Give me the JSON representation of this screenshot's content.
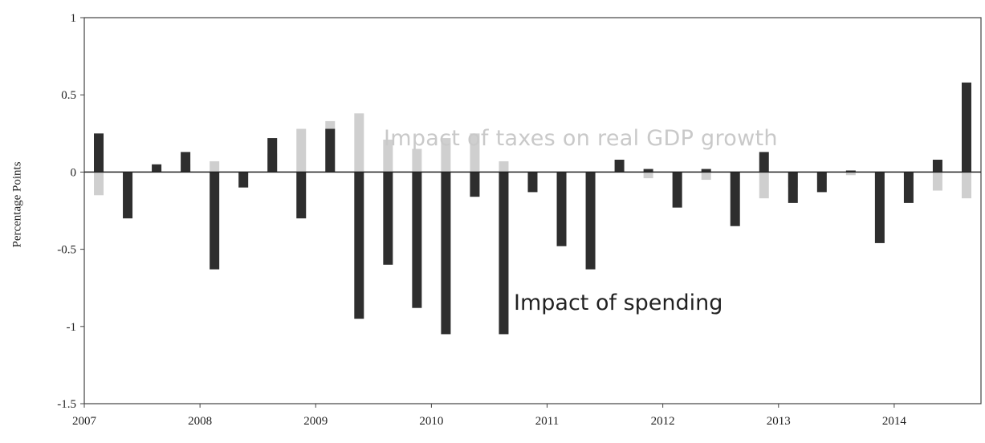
{
  "chart_data": {
    "type": "bar",
    "title": "",
    "ylabel": "Percentage Points",
    "xlabel": "",
    "ylim": [
      -1.5,
      1
    ],
    "yticks": [
      "1",
      "0.5",
      "0",
      "-0.5",
      "-1",
      "-1.5"
    ],
    "x_tick_labels": [
      "2007",
      "2008",
      "2009",
      "2010",
      "2011",
      "2012",
      "2013",
      "2014"
    ],
    "annotations": {
      "taxes": "Impact of taxes on real GDP growth",
      "spending": "Impact of spending"
    },
    "colors": {
      "taxes": "#cfcfcf",
      "spending": "#2e2e2e"
    },
    "grid": false,
    "series": [
      {
        "key": "taxes",
        "values": [
          -0.15,
          -0.12,
          0.02,
          0.05,
          0.07,
          -0.02,
          0.12,
          0.28,
          0.33,
          0.38,
          0.21,
          0.15,
          0.22,
          0.25,
          0.07,
          -0.03,
          -0.05,
          -0.03,
          0.01,
          -0.04,
          -0.05,
          -0.05,
          -0.05,
          -0.17,
          -0.1,
          -0.05,
          -0.02,
          -0.04,
          -0.03,
          -0.12,
          -0.17
        ]
      },
      {
        "key": "spending",
        "values": [
          0.25,
          -0.3,
          0.05,
          0.13,
          -0.63,
          -0.1,
          0.22,
          -0.3,
          0.28,
          -0.95,
          -0.6,
          -0.88,
          -1.05,
          -0.16,
          -1.05,
          -0.13,
          -0.48,
          -0.63,
          0.08,
          0.02,
          -0.23,
          0.02,
          -0.35,
          0.13,
          -0.2,
          -0.13,
          0.01,
          -0.46,
          -0.2,
          0.08,
          0.58
        ]
      }
    ]
  }
}
